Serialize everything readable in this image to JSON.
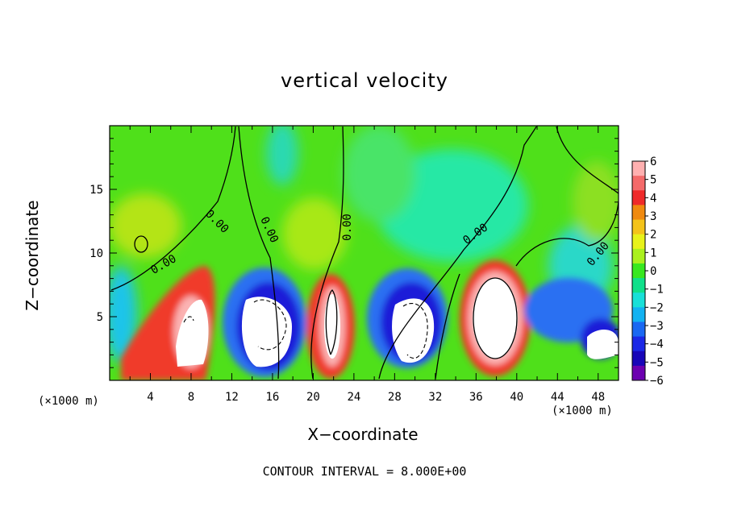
{
  "chart_data": {
    "type": "heatmap",
    "title": "vertical velocity",
    "xlabel": "X−coordinate",
    "ylabel": "Z−coordinate",
    "x_unit_label": "(×1000 m)",
    "x_ticks": [
      "4",
      "8",
      "12",
      "16",
      "20",
      "24",
      "28",
      "32",
      "36",
      "40",
      "44",
      "48"
    ],
    "y_ticks": [
      "5",
      "10",
      "15"
    ],
    "xlim": [
      0,
      50
    ],
    "ylim": [
      0,
      20
    ],
    "footer": "CONTOUR INTERVAL = 8.000E+00",
    "contour_labels": [
      "0.00",
      "0.00",
      "0.00",
      "0.00",
      "0.00",
      "0.00"
    ],
    "colorbar": {
      "ticks": [
        "6",
        "5",
        "4",
        "3",
        "2",
        "1",
        "0",
        "−1",
        "−2",
        "−3",
        "−4",
        "−5",
        "−6"
      ],
      "range": [
        -6,
        6
      ]
    },
    "updraft_cores": [
      {
        "x": 7.5,
        "z": 4.5,
        "w": 4.5
      },
      {
        "x": 22,
        "z": 4.5,
        "w": 6
      },
      {
        "x": 37.5,
        "z": 4.5,
        "w": 6
      }
    ],
    "downdraft_cores": [
      {
        "x": 16,
        "z": 4.5,
        "w": -6
      },
      {
        "x": 30,
        "z": 4.5,
        "w": -6
      },
      {
        "x": 47.5,
        "z": 3,
        "w": -6
      }
    ]
  }
}
